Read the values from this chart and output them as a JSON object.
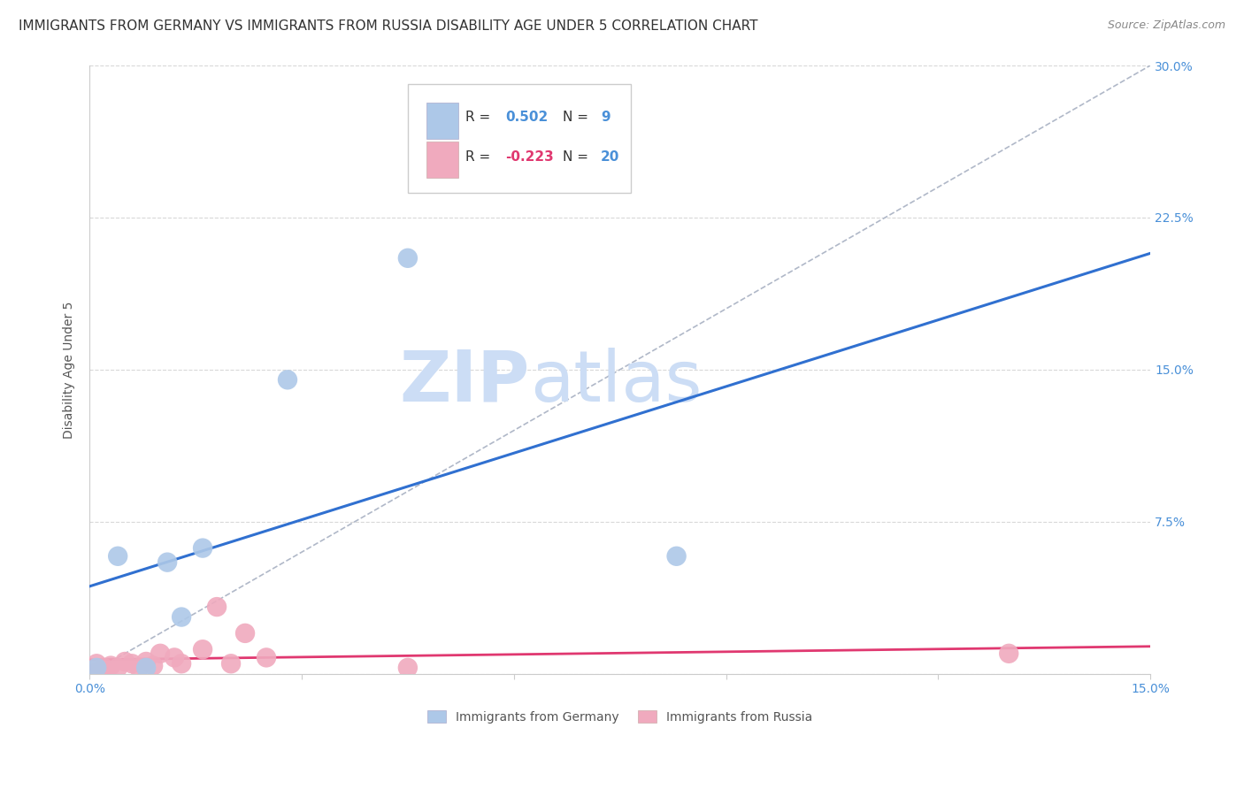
{
  "title": "IMMIGRANTS FROM GERMANY VS IMMIGRANTS FROM RUSSIA DISABILITY AGE UNDER 5 CORRELATION CHART",
  "source": "Source: ZipAtlas.com",
  "ylabel": "Disability Age Under 5",
  "xlim": [
    0.0,
    0.15
  ],
  "ylim": [
    0.0,
    0.3
  ],
  "xticks": [
    0.0,
    0.03,
    0.06,
    0.09,
    0.12,
    0.15
  ],
  "xtick_labels": [
    "0.0%",
    "",
    "",
    "",
    "",
    "15.0%"
  ],
  "yticks": [
    0.0,
    0.075,
    0.15,
    0.225,
    0.3
  ],
  "ytick_labels": [
    "",
    "7.5%",
    "15.0%",
    "22.5%",
    "30.0%"
  ],
  "germany_R": 0.502,
  "germany_N": 9,
  "russia_R": -0.223,
  "russia_N": 20,
  "germany_color": "#adc8e8",
  "germany_line_color": "#3070d0",
  "russia_color": "#f0aabe",
  "russia_line_color": "#e03870",
  "germany_scatter_x": [
    0.001,
    0.004,
    0.008,
    0.011,
    0.013,
    0.016,
    0.028,
    0.045,
    0.083
  ],
  "germany_scatter_y": [
    0.003,
    0.058,
    0.003,
    0.055,
    0.028,
    0.062,
    0.145,
    0.205,
    0.058
  ],
  "russia_scatter_x": [
    0.001,
    0.001,
    0.002,
    0.003,
    0.004,
    0.005,
    0.006,
    0.007,
    0.008,
    0.009,
    0.01,
    0.012,
    0.013,
    0.016,
    0.018,
    0.02,
    0.022,
    0.025,
    0.045,
    0.13
  ],
  "russia_scatter_y": [
    0.001,
    0.005,
    0.003,
    0.004,
    0.003,
    0.006,
    0.005,
    0.003,
    0.006,
    0.004,
    0.01,
    0.008,
    0.005,
    0.012,
    0.033,
    0.005,
    0.02,
    0.008,
    0.003,
    0.01
  ],
  "watermark_zip": "ZIP",
  "watermark_atlas": "atlas",
  "watermark_color": "#ccddf5",
  "background_color": "#ffffff",
  "grid_color": "#d8d8d8",
  "title_fontsize": 11,
  "tick_label_color_y": "#4a90d8",
  "tick_label_color_x": "#4a90d8",
  "legend_R_color": "#333333",
  "legend_val_color_blue": "#4a90d8",
  "legend_val_color_pink": "#e03870"
}
